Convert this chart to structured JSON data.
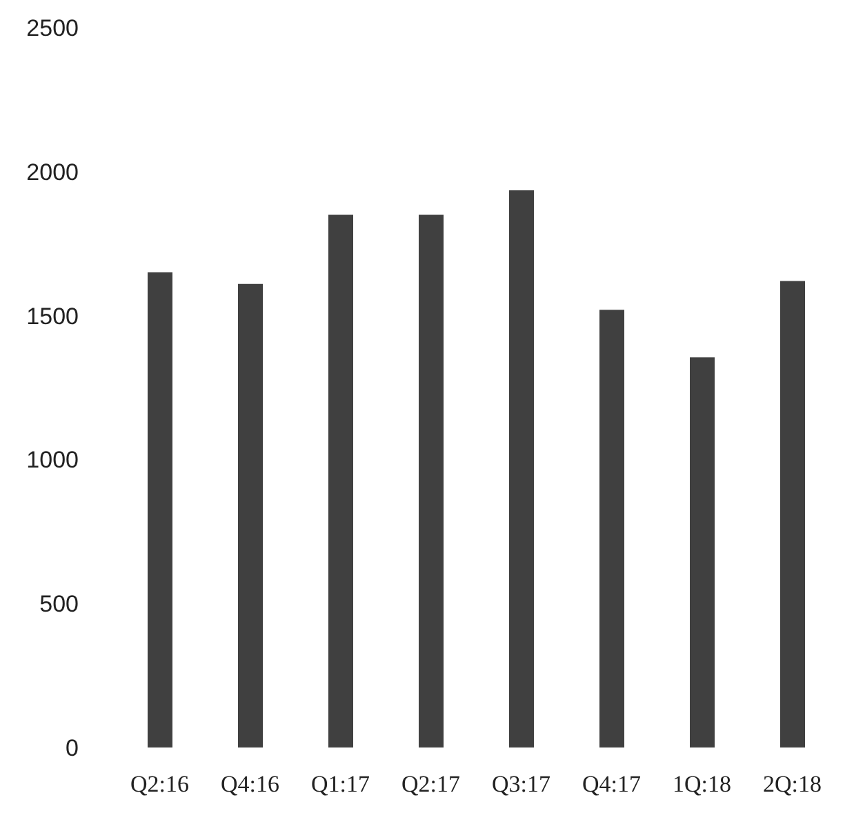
{
  "chart_data": {
    "type": "bar",
    "categories": [
      "Q2:16",
      "Q4:16",
      "Q1:17",
      "Q2:17",
      "Q3:17",
      "Q4:17",
      "1Q:18",
      "2Q:18"
    ],
    "values": [
      1650,
      1610,
      1850,
      1850,
      1935,
      1520,
      1355,
      1620
    ],
    "color": "#404040",
    "ylim": [
      0,
      2500
    ],
    "yticks": [
      0,
      500,
      1000,
      1500,
      2000,
      2500
    ],
    "grid": false
  }
}
